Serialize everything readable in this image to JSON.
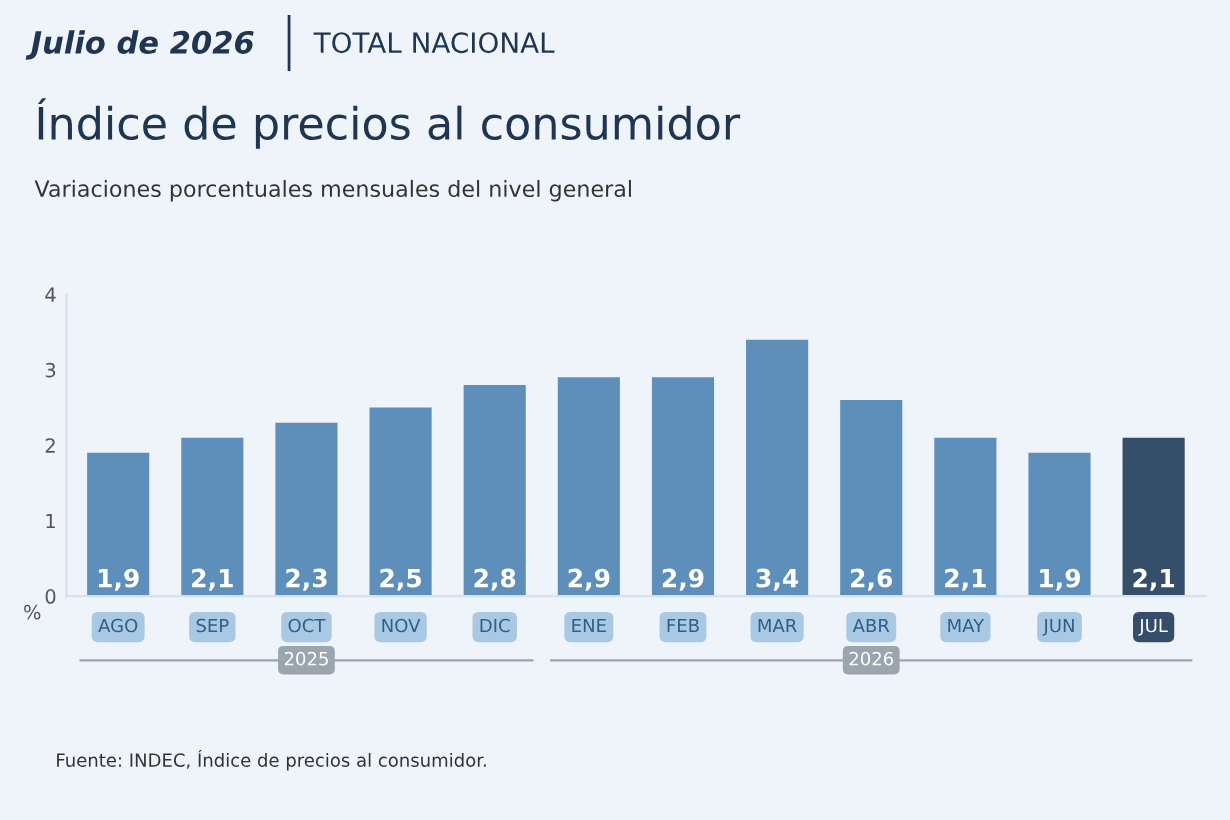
{
  "chart_data": {
    "type": "bar",
    "title": "Índice de precios al consumidor",
    "subtitle": "Variaciones porcentuales mensuales del nivel general",
    "ylabel": "%",
    "categories": [
      "AGO",
      "SEP",
      "OCT",
      "NOV",
      "DIC",
      "ENE",
      "FEB",
      "MAR",
      "ABR",
      "MAY",
      "JUN",
      "JUL"
    ],
    "values": [
      1.9,
      2.1,
      2.3,
      2.5,
      2.8,
      2.9,
      2.9,
      3.4,
      2.6,
      2.1,
      1.9,
      2.1
    ],
    "colors": [
      "#5e8fbb",
      "#5e8fbb",
      "#5e8fbb",
      "#5e8fbb",
      "#5e8fbb",
      "#5e8fbb",
      "#5e8fbb",
      "#5e8fbb",
      "#5e8fbb",
      "#5e8fbb",
      "#5e8fbb",
      "#354e69"
    ],
    "value_labels": [
      "1,9",
      "2,1",
      "2,3",
      "2,5",
      "2,8",
      "2,9",
      "2,9",
      "3,4",
      "2,6",
      "2,1",
      "1,9",
      "2,1"
    ],
    "ylim": [
      0,
      4
    ],
    "yticks": [
      0,
      1,
      2,
      3,
      4
    ],
    "grid": false,
    "legend": false,
    "annotations": [
      "Julio de 2026",
      "TOTAL NACIONAL",
      "2025",
      "2026",
      "Fuente: INDEC, Índice de precios al consumidor."
    ]
  }
}
